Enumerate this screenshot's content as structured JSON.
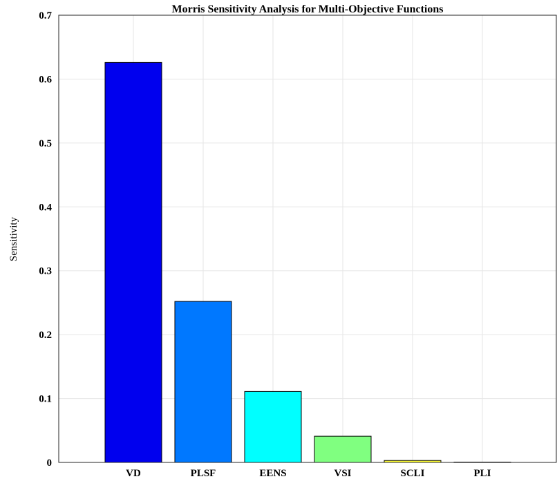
{
  "chart_data": {
    "type": "bar",
    "title": "Morris Sensitivity Analysis for Multi-Objective Functions",
    "xlabel": "",
    "ylabel": "Sensitivity",
    "categories": [
      "VD",
      "PLSF",
      "EENS",
      "VSI",
      "SCLI",
      "PLI"
    ],
    "values": [
      0.626,
      0.252,
      0.111,
      0.041,
      0.003,
      0.0
    ],
    "colors": [
      "#0000ee",
      "#0078ff",
      "#00ffff",
      "#80ff80",
      "#ffff33",
      "#ff8800"
    ],
    "ylim": [
      0,
      0.7
    ],
    "yticks": [
      "0",
      "0.1",
      "0.2",
      "0.3",
      "0.4",
      "0.5",
      "0.6",
      "0.7"
    ],
    "grid": true,
    "legend": "none"
  }
}
